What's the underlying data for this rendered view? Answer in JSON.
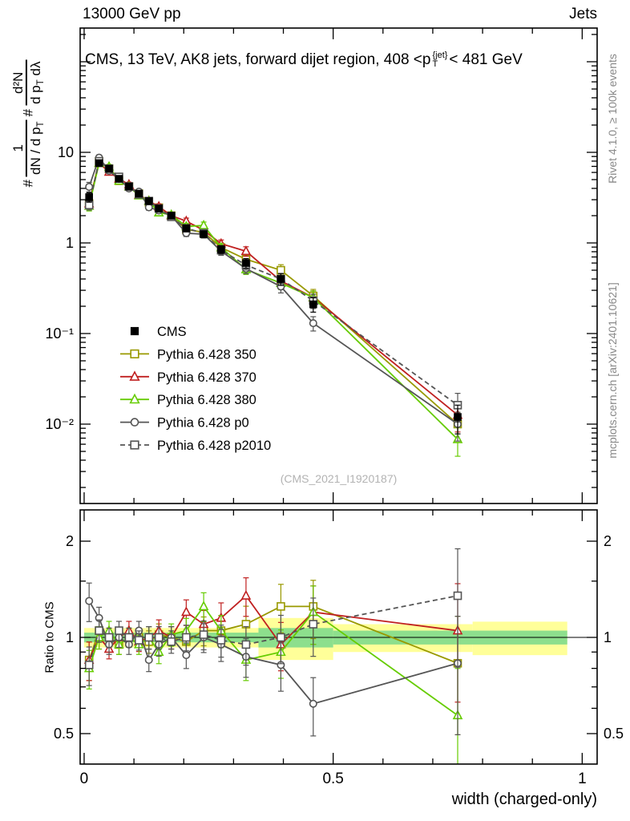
{
  "header": {
    "left": "13000 GeV pp",
    "right": "Jets"
  },
  "panel_title": {
    "prefix": "CMS, 13 TeV, AK8 jets, forward dijet region, 408 <p",
    "sup": "{jet}",
    "sub": "T",
    "suffix": "< 481 GeV"
  },
  "side_labels": {
    "rivet": "Rivet 4.1.0, ≥ 100k events",
    "mcplots": "mcplots.cern.ch [arXiv:2401.10621]"
  },
  "watermark": "(CMS_2021_I1920187)",
  "axes": {
    "x_label": "width (charged-only)",
    "ratio_label": "Ratio to CMS",
    "y_label": {
      "hash1": "#",
      "f1_num": "1",
      "f1_den_main": "dN / d p",
      "f1_den_sub": "T",
      "hash2": "#",
      "f2_num": "d²N",
      "f2_den_main": "d p",
      "f2_den_sub": "T",
      "f2_den_tail": " dλ"
    }
  },
  "chart_data": {
    "type": "line",
    "title": "CMS, 13 TeV, AK8 jets, forward dijet region, 408 < pT{jet} < 481 GeV",
    "xlabel": "width (charged-only)",
    "ylabel": "1/(dN/dpT) d2N/(dpT dlambda)",
    "ratio_ylabel": "Ratio to CMS",
    "ylog": true,
    "xlim": [
      -0.008,
      1.03
    ],
    "ylim_main": [
      0.0013,
      230
    ],
    "ylim_ratio": [
      0.4,
      2.48
    ],
    "x": [
      0.01,
      0.03,
      0.05,
      0.07,
      0.09,
      0.11,
      0.13,
      0.15,
      0.175,
      0.205,
      0.24,
      0.275,
      0.325,
      0.395,
      0.46,
      0.75
    ],
    "frac_err": [
      0.12,
      0.07,
      0.06,
      0.06,
      0.06,
      0.06,
      0.07,
      0.07,
      0.07,
      0.08,
      0.09,
      0.1,
      0.12,
      0.15,
      0.18,
      0.35
    ],
    "series": [
      {
        "name": "CMS",
        "color": "#000000",
        "marker": "square-filled",
        "line": "none",
        "values": [
          3.2,
          7.6,
          6.6,
          5.1,
          4.2,
          3.5,
          2.9,
          2.4,
          2.0,
          1.45,
          1.25,
          0.85,
          0.6,
          0.4,
          0.21,
          0.012
        ],
        "ratio": null
      },
      {
        "name": "Pythia 6.428 350",
        "color": "#999900",
        "marker": "square-open",
        "line": "solid",
        "values": [
          2.72,
          7.98,
          6.6,
          4.85,
          4.2,
          3.5,
          2.81,
          2.45,
          2.0,
          1.41,
          1.31,
          0.89,
          0.66,
          0.5,
          0.26,
          0.01
        ],
        "ratio": [
          0.85,
          1.05,
          1.0,
          0.95,
          1.0,
          1.0,
          0.97,
          1.02,
          1.0,
          0.97,
          1.05,
          1.05,
          1.1,
          1.25,
          1.25,
          0.83
        ]
      },
      {
        "name": "Pythia 6.428 370",
        "color": "#c02020",
        "marker": "triangle-open",
        "line": "solid",
        "values": [
          2.72,
          7.6,
          6.07,
          5.1,
          4.41,
          3.4,
          2.9,
          2.52,
          2.0,
          1.74,
          1.38,
          0.98,
          0.81,
          0.38,
          0.25,
          0.0126
        ],
        "ratio": [
          0.85,
          1.0,
          0.92,
          1.0,
          1.05,
          0.97,
          1.0,
          1.05,
          1.0,
          1.2,
          1.1,
          1.15,
          1.35,
          0.95,
          1.2,
          1.05
        ]
      },
      {
        "name": "Pythia 6.428 380",
        "color": "#66cc00",
        "marker": "triangle-open",
        "line": "solid",
        "values": [
          2.56,
          7.6,
          6.93,
          4.85,
          4.2,
          3.33,
          2.9,
          2.16,
          2.04,
          1.52,
          1.56,
          0.89,
          0.51,
          0.36,
          0.25,
          0.0068
        ],
        "ratio": [
          0.8,
          1.0,
          1.05,
          0.95,
          1.0,
          0.95,
          1.0,
          0.9,
          1.02,
          1.05,
          1.25,
          1.05,
          0.85,
          0.9,
          1.2,
          0.57
        ]
      },
      {
        "name": "Pythia 6.428 p0",
        "color": "#555555",
        "marker": "circle-open",
        "line": "solid",
        "values": [
          4.16,
          8.74,
          6.27,
          5.1,
          3.99,
          3.68,
          2.47,
          2.28,
          2.0,
          1.28,
          1.25,
          0.81,
          0.52,
          0.33,
          0.13,
          0.01
        ],
        "ratio": [
          1.3,
          1.15,
          0.95,
          1.0,
          0.95,
          1.05,
          0.85,
          0.95,
          1.0,
          0.88,
          1.0,
          0.95,
          0.87,
          0.82,
          0.62,
          0.83
        ]
      },
      {
        "name": "Pythia 6.428 p2010",
        "color": "#555555",
        "marker": "square-open",
        "line": "dashed",
        "values": [
          2.62,
          7.98,
          6.6,
          5.36,
          4.2,
          3.43,
          2.9,
          2.4,
          1.94,
          1.45,
          1.28,
          0.83,
          0.57,
          0.4,
          0.23,
          0.0162
        ],
        "ratio": [
          0.82,
          1.05,
          1.0,
          1.05,
          1.0,
          0.98,
          1.0,
          1.0,
          0.97,
          1.0,
          1.02,
          0.98,
          0.95,
          1.0,
          1.1,
          1.35
        ]
      }
    ],
    "x_ticks": [
      {
        "v": 0,
        "label": "0"
      },
      {
        "v": 0.5,
        "label": "0.5"
      },
      {
        "v": 1,
        "label": "1"
      }
    ],
    "y_ticks_main": [
      {
        "v": 10,
        "label": "10"
      },
      {
        "v": 1,
        "label": "1"
      },
      {
        "v": 0.1,
        "label": "10⁻¹"
      },
      {
        "v": 0.01,
        "label": "10⁻²"
      }
    ],
    "y_ticks_ratio": [
      {
        "v": 2,
        "label": "2"
      },
      {
        "v": 1,
        "label": "1"
      },
      {
        "v": 0.5,
        "label": "0.5"
      }
    ],
    "bands": {
      "yellow_color": "#ffff99",
      "green_color": "#8ddf8d",
      "yellow": [
        {
          "x0": 0.0,
          "x1": 0.35,
          "lo": 0.93,
          "hi": 1.07
        },
        {
          "x0": 0.35,
          "x1": 0.5,
          "lo": 0.85,
          "hi": 1.15
        },
        {
          "x0": 0.5,
          "x1": 0.78,
          "lo": 0.9,
          "hi": 1.1
        },
        {
          "x0": 0.78,
          "x1": 0.97,
          "lo": 0.88,
          "hi": 1.12
        }
      ],
      "green": [
        {
          "x0": 0.0,
          "x1": 0.35,
          "lo": 0.965,
          "hi": 1.035
        },
        {
          "x0": 0.35,
          "x1": 0.5,
          "lo": 0.93,
          "hi": 1.07
        },
        {
          "x0": 0.5,
          "x1": 0.97,
          "lo": 0.95,
          "hi": 1.05
        }
      ]
    },
    "legend_position": "left-middle",
    "grid": false
  }
}
